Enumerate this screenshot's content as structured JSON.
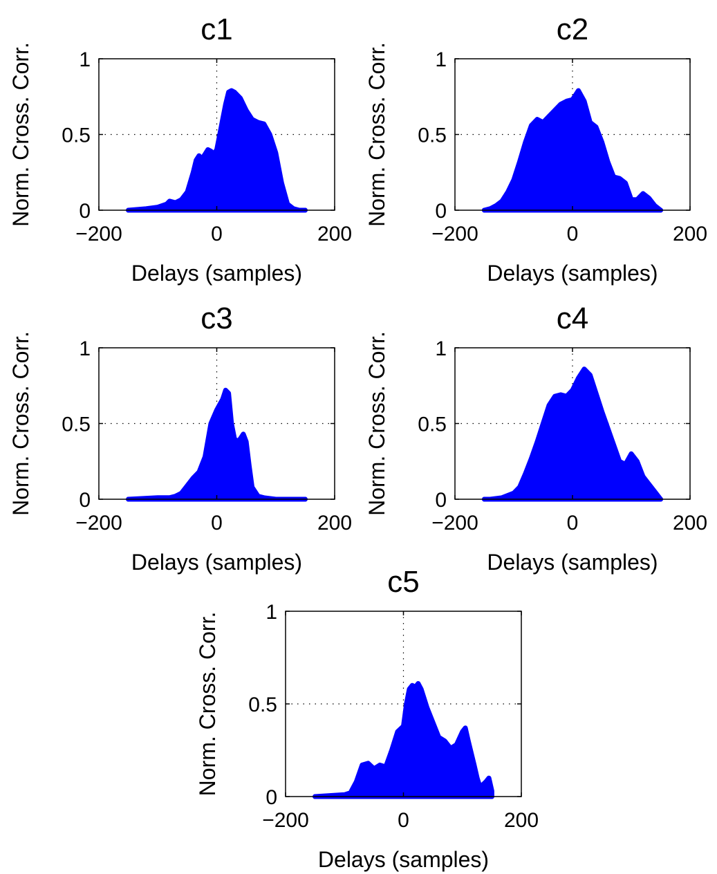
{
  "chart_data": [
    {
      "type": "area",
      "title": "c1",
      "xlabel": "Delays (samples)",
      "ylabel": "Norm. Cross. Corr.",
      "xlim": [
        -200,
        200
      ],
      "ylim": [
        0,
        1
      ],
      "xticks": [
        -200,
        0,
        200
      ],
      "xtick_labels": [
        "−200",
        "0",
        "200"
      ],
      "yticks": [
        0,
        0.5,
        1
      ],
      "ytick_labels": [
        "0",
        "0.5",
        "1"
      ],
      "grid": "dotted",
      "series": [
        {
          "color": "#0000ff",
          "x": [
            -150,
            -120,
            -100,
            -85,
            -80,
            -70,
            -60,
            -50,
            -40,
            -35,
            -30,
            -25,
            -20,
            -15,
            -10,
            -5,
            0,
            5,
            10,
            15,
            20,
            25,
            30,
            40,
            50,
            60,
            70,
            80,
            90,
            100,
            110,
            120,
            130,
            140,
            150
          ],
          "y": [
            0.0,
            0.01,
            0.02,
            0.04,
            0.06,
            0.05,
            0.07,
            0.12,
            0.25,
            0.33,
            0.36,
            0.34,
            0.37,
            0.4,
            0.39,
            0.37,
            0.4,
            0.5,
            0.6,
            0.7,
            0.78,
            0.79,
            0.78,
            0.74,
            0.66,
            0.6,
            0.58,
            0.57,
            0.5,
            0.38,
            0.18,
            0.04,
            0.01,
            0.0,
            0.0
          ]
        }
      ]
    },
    {
      "type": "area",
      "title": "c2",
      "xlabel": "Delays (samples)",
      "ylabel": "Norm. Cross. Corr.",
      "xlim": [
        -200,
        200
      ],
      "ylim": [
        0,
        1
      ],
      "xticks": [
        -200,
        0,
        200
      ],
      "xtick_labels": [
        "−200",
        "0",
        "200"
      ],
      "yticks": [
        0,
        0.5,
        1
      ],
      "ytick_labels": [
        "0",
        "0.5",
        "1"
      ],
      "grid": "dotted",
      "series": [
        {
          "color": "#0000ff",
          "x": [
            -150,
            -140,
            -130,
            -120,
            -110,
            -100,
            -90,
            -80,
            -70,
            -60,
            -50,
            -40,
            -30,
            -20,
            -10,
            0,
            5,
            10,
            20,
            30,
            40,
            50,
            60,
            70,
            80,
            90,
            100,
            110,
            120,
            130,
            140,
            150
          ],
          "y": [
            0.0,
            0.01,
            0.03,
            0.06,
            0.12,
            0.2,
            0.32,
            0.45,
            0.56,
            0.6,
            0.58,
            0.62,
            0.66,
            0.7,
            0.72,
            0.73,
            0.76,
            0.79,
            0.72,
            0.58,
            0.55,
            0.45,
            0.32,
            0.22,
            0.21,
            0.18,
            0.07,
            0.07,
            0.11,
            0.08,
            0.03,
            0.0
          ]
        }
      ]
    },
    {
      "type": "area",
      "title": "c3",
      "xlabel": "Delays (samples)",
      "ylabel": "Norm. Cross. Corr.",
      "xlim": [
        -200,
        200
      ],
      "ylim": [
        0,
        1
      ],
      "xticks": [
        -200,
        0,
        200
      ],
      "xtick_labels": [
        "−200",
        "0",
        "200"
      ],
      "yticks": [
        0,
        0.5,
        1
      ],
      "ytick_labels": [
        "0",
        "0.5",
        "1"
      ],
      "grid": "dotted",
      "series": [
        {
          "color": "#0000ff",
          "x": [
            -150,
            -100,
            -80,
            -70,
            -60,
            -50,
            -40,
            -30,
            -20,
            -10,
            0,
            10,
            15,
            20,
            25,
            30,
            35,
            40,
            45,
            50,
            55,
            60,
            70,
            80,
            100,
            150
          ],
          "y": [
            0.0,
            0.01,
            0.01,
            0.02,
            0.04,
            0.09,
            0.14,
            0.18,
            0.28,
            0.5,
            0.59,
            0.66,
            0.72,
            0.7,
            0.5,
            0.4,
            0.38,
            0.4,
            0.43,
            0.38,
            0.22,
            0.08,
            0.02,
            0.01,
            0.0,
            0.0
          ]
        }
      ]
    },
    {
      "type": "area",
      "title": "c4",
      "xlabel": "Delays (samples)",
      "ylabel": "Norm. Cross. Corr.",
      "xlim": [
        -200,
        200
      ],
      "ylim": [
        0,
        1
      ],
      "xticks": [
        -200,
        0,
        200
      ],
      "xtick_labels": [
        "−200",
        "0",
        "200"
      ],
      "yticks": [
        0,
        0.5,
        1
      ],
      "ytick_labels": [
        "0",
        "0.5",
        "1"
      ],
      "grid": "dotted",
      "series": [
        {
          "color": "#0000ff",
          "x": [
            -150,
            -140,
            -120,
            -100,
            -90,
            -80,
            -70,
            -60,
            -50,
            -40,
            -30,
            -20,
            -10,
            0,
            10,
            20,
            30,
            40,
            50,
            60,
            70,
            80,
            90,
            100,
            110,
            120,
            130,
            140,
            150
          ],
          "y": [
            0.0,
            0.0,
            0.01,
            0.04,
            0.08,
            0.17,
            0.27,
            0.38,
            0.5,
            0.62,
            0.68,
            0.69,
            0.68,
            0.72,
            0.8,
            0.86,
            0.82,
            0.7,
            0.58,
            0.47,
            0.36,
            0.25,
            0.23,
            0.3,
            0.25,
            0.15,
            0.1,
            0.05,
            0.0
          ]
        }
      ]
    },
    {
      "type": "area",
      "title": "c5",
      "xlabel": "Delays (samples)",
      "ylabel": "Norm. Cross. Corr.",
      "xlim": [
        -200,
        200
      ],
      "ylim": [
        0,
        1
      ],
      "xticks": [
        -200,
        0,
        200
      ],
      "xtick_labels": [
        "−200",
        "0",
        "200"
      ],
      "yticks": [
        0,
        0.5,
        1
      ],
      "ytick_labels": [
        "0",
        "0.5",
        "1"
      ],
      "grid": "dotted",
      "series": [
        {
          "color": "#0000ff",
          "x": [
            -150,
            -100,
            -90,
            -80,
            -70,
            -60,
            -50,
            -40,
            -30,
            -20,
            -10,
            0,
            5,
            10,
            15,
            20,
            25,
            30,
            40,
            50,
            60,
            70,
            80,
            90,
            100,
            105,
            110,
            120,
            125,
            130,
            140,
            145,
            150
          ],
          "y": [
            0.0,
            0.01,
            0.02,
            0.08,
            0.17,
            0.18,
            0.15,
            0.17,
            0.16,
            0.25,
            0.35,
            0.38,
            0.5,
            0.58,
            0.6,
            0.59,
            0.61,
            0.58,
            0.48,
            0.4,
            0.32,
            0.3,
            0.26,
            0.28,
            0.35,
            0.37,
            0.3,
            0.17,
            0.1,
            0.05,
            0.08,
            0.1,
            0.03
          ]
        }
      ]
    }
  ]
}
